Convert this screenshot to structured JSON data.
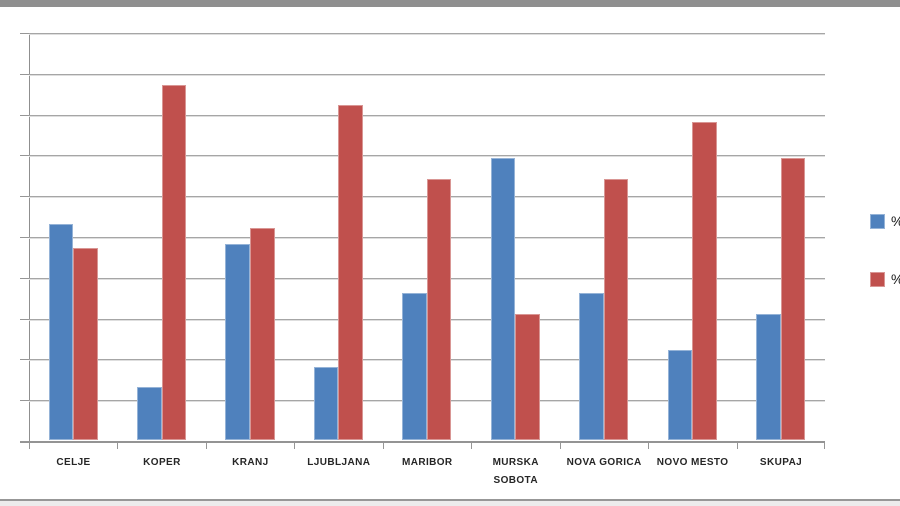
{
  "window": {
    "top_border_color": "#8f8f8f",
    "bottom_border_color": "#979797",
    "bottom_strip_color": "#ececec",
    "background": "#ffffff"
  },
  "chart_data": {
    "type": "bar",
    "title": "",
    "categories": [
      "CELJE",
      "KOPER",
      "KRANJ",
      "LJUBLJANA",
      "MARIBOR",
      "MURSKA SOBOTA",
      "NOVA GORICA",
      "NOVO MESTO",
      "SKUPAJ"
    ],
    "category_label_lines": [
      [
        "CELJE"
      ],
      [
        "KOPER"
      ],
      [
        "KRANJ"
      ],
      [
        "LJUBLJANA"
      ],
      [
        "MARIBOR"
      ],
      [
        "MURSKA",
        "SOBOTA"
      ],
      [
        "NOVA GORICA"
      ],
      [
        "NOVO MESTO"
      ],
      [
        "SKUPAJ"
      ]
    ],
    "series": [
      {
        "name": "%",
        "color": "#4F81BD",
        "edge_color": "#95B3D7",
        "values": [
          53,
          13,
          48,
          18,
          36,
          69,
          36,
          22,
          31
        ]
      },
      {
        "name": "%",
        "color": "#C0504D",
        "edge_color": "#D99694",
        "values": [
          47,
          87,
          52,
          82,
          64,
          31,
          64,
          78,
          69
        ]
      }
    ],
    "xlabel": "",
    "ylabel": "",
    "ylim": [
      0,
      100
    ],
    "y_major_unit": 10,
    "grid": true,
    "gridline_color": "#a6a6a6",
    "axis_color": "#8f8f8f",
    "y_tick_labels_visible": false,
    "legend_position": "right",
    "legend_labels_cut_by_image_edge": true
  }
}
